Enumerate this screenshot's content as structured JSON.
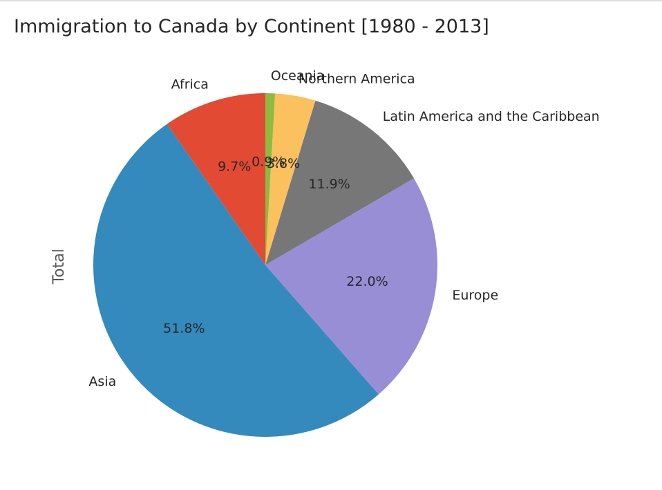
{
  "chart_data": {
    "type": "pie",
    "title": "Immigration to Canada by Continent [1980 - 2013]",
    "ylabel": "Total",
    "start_angle_deg": 90,
    "direction": "counterclockwise",
    "slices": [
      {
        "label": "Africa",
        "percent": 9.7,
        "pct_text": "9.7%",
        "color": "#E24A33"
      },
      {
        "label": "Asia",
        "percent": 51.8,
        "pct_text": "51.8%",
        "color": "#348ABD"
      },
      {
        "label": "Europe",
        "percent": 22.0,
        "pct_text": "22.0%",
        "color": "#988ED5"
      },
      {
        "label": "Latin America and the Caribbean",
        "percent": 11.9,
        "pct_text": "11.9%",
        "color": "#777777"
      },
      {
        "label": "Northern America",
        "percent": 3.8,
        "pct_text": "3.8%",
        "color": "#FBC15E"
      },
      {
        "label": "Oceania",
        "percent": 0.9,
        "pct_text": "0.9%",
        "color": "#8EBA42"
      }
    ]
  }
}
